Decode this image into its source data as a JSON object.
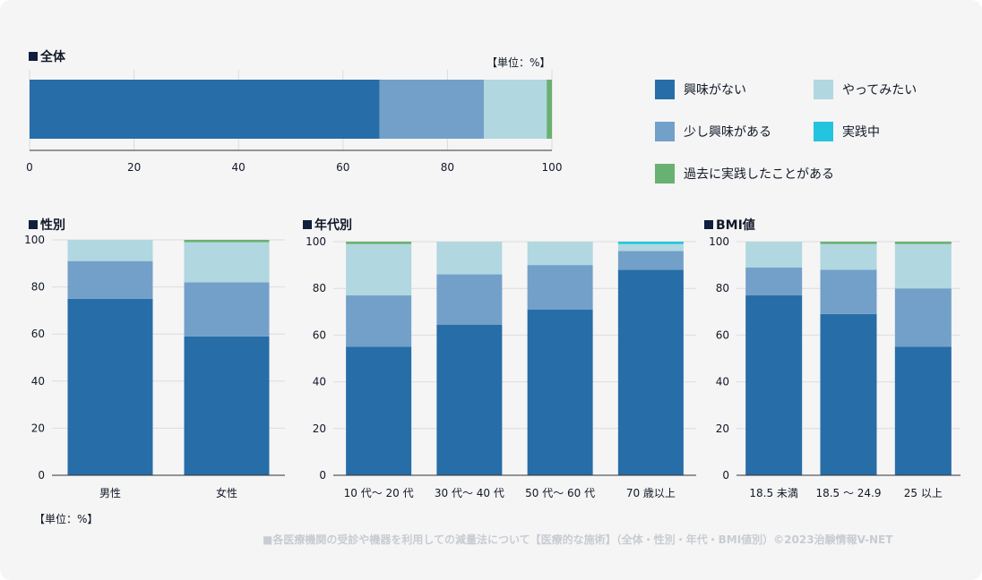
{
  "unit_label": "【単位：%】",
  "footer": "■各医療機関の受診や機器を利用しての減量法について【医療的な施術】（全体・性別・年代・BMI値別）©2023治験情報V-NET",
  "colors": {
    "not_interested": "#276da8",
    "somewhat": "#73a0c9",
    "want_to_try": "#b1d7e0",
    "practicing": "#22c4df",
    "past": "#69b172"
  },
  "legend": [
    {
      "key": "not_interested",
      "label": "興味がない"
    },
    {
      "key": "want_to_try",
      "label": "やってみたい"
    },
    {
      "key": "somewhat",
      "label": "少し興味がある"
    },
    {
      "key": "practicing",
      "label": "実践中"
    },
    {
      "key": "past",
      "label": "過去に実践したことがある"
    }
  ],
  "chart_data": [
    {
      "id": "overall",
      "type": "bar",
      "orientation": "horizontal",
      "stacked": true,
      "title": "全体",
      "xlim": [
        0,
        100
      ],
      "ticks": [
        0,
        20,
        40,
        60,
        80,
        100
      ],
      "categories": [
        "全体"
      ],
      "series": [
        {
          "name": "興味がない",
          "key": "not_interested",
          "values": [
            67
          ]
        },
        {
          "name": "少し興味がある",
          "key": "somewhat",
          "values": [
            20
          ]
        },
        {
          "name": "やってみたい",
          "key": "want_to_try",
          "values": [
            12
          ]
        },
        {
          "name": "実践中",
          "key": "practicing",
          "values": [
            0
          ]
        },
        {
          "name": "過去に実践したことがある",
          "key": "past",
          "values": [
            1
          ]
        }
      ]
    },
    {
      "id": "gender",
      "type": "bar",
      "orientation": "vertical",
      "stacked": true,
      "title": "性別",
      "ylim": [
        0,
        100
      ],
      "ticks": [
        0,
        20,
        40,
        60,
        80,
        100
      ],
      "categories": [
        "男性",
        "女性"
      ],
      "series": [
        {
          "name": "興味がない",
          "key": "not_interested",
          "values": [
            75,
            59
          ]
        },
        {
          "name": "少し興味がある",
          "key": "somewhat",
          "values": [
            16,
            23
          ]
        },
        {
          "name": "やってみたい",
          "key": "want_to_try",
          "values": [
            9,
            17
          ]
        },
        {
          "name": "実践中",
          "key": "practicing",
          "values": [
            0,
            0
          ]
        },
        {
          "name": "過去に実践したことがある",
          "key": "past",
          "values": [
            0,
            1
          ]
        }
      ]
    },
    {
      "id": "age",
      "type": "bar",
      "orientation": "vertical",
      "stacked": true,
      "title": "年代別",
      "ylim": [
        0,
        100
      ],
      "ticks": [
        0,
        20,
        40,
        60,
        80,
        100
      ],
      "categories": [
        "10 代～ 20 代",
        "30 代～ 40 代",
        "50 代～ 60 代",
        "70 歳以上"
      ],
      "series": [
        {
          "name": "興味がない",
          "key": "not_interested",
          "values": [
            55,
            64.5,
            71,
            88
          ]
        },
        {
          "name": "少し興味がある",
          "key": "somewhat",
          "values": [
            22,
            21.5,
            19,
            8
          ]
        },
        {
          "name": "やってみたい",
          "key": "want_to_try",
          "values": [
            22,
            14,
            10,
            3
          ]
        },
        {
          "name": "実践中",
          "key": "practicing",
          "values": [
            0,
            0,
            0,
            1
          ]
        },
        {
          "name": "過去に実践したことがある",
          "key": "past",
          "values": [
            1,
            0,
            0,
            0
          ]
        }
      ]
    },
    {
      "id": "bmi",
      "type": "bar",
      "orientation": "vertical",
      "stacked": true,
      "title": "BMI値",
      "ylim": [
        0,
        100
      ],
      "ticks": [
        0,
        20,
        40,
        60,
        80,
        100
      ],
      "categories": [
        "18.5 未満",
        "18.5 ～ 24.9",
        "25 以上"
      ],
      "series": [
        {
          "name": "興味がない",
          "key": "not_interested",
          "values": [
            77,
            69,
            55
          ]
        },
        {
          "name": "少し興味がある",
          "key": "somewhat",
          "values": [
            12,
            19,
            25
          ]
        },
        {
          "name": "やってみたい",
          "key": "want_to_try",
          "values": [
            11,
            11,
            19
          ]
        },
        {
          "name": "実践中",
          "key": "practicing",
          "values": [
            0,
            0,
            0
          ]
        },
        {
          "name": "過去に実践したことがある",
          "key": "past",
          "values": [
            0,
            1,
            1
          ]
        }
      ]
    }
  ]
}
